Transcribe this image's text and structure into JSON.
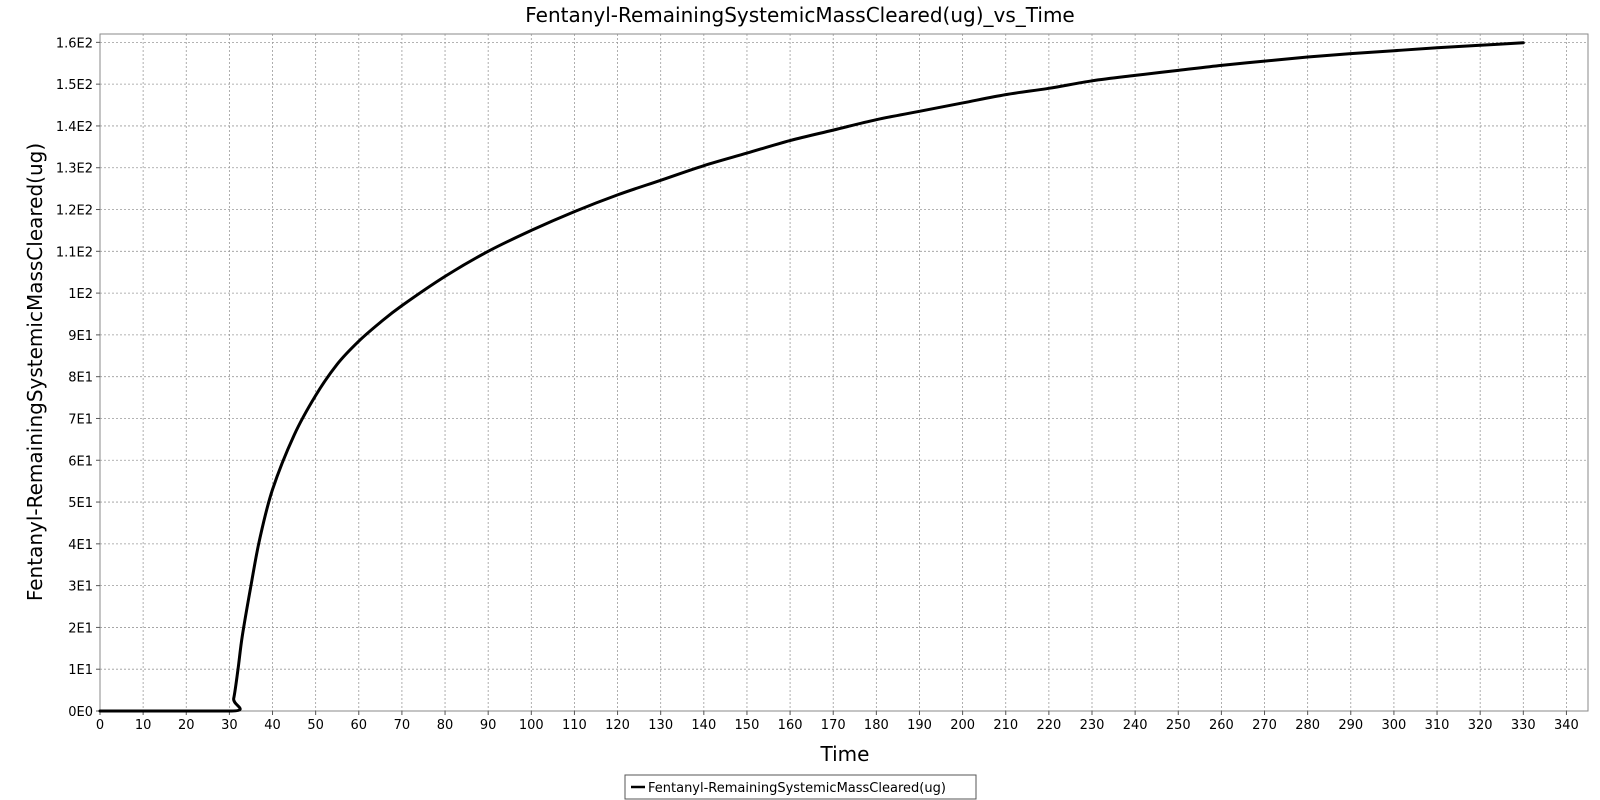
{
  "chart_data": {
    "type": "line",
    "title": "Fentanyl-RemainingSystemicMassCleared(ug)_vs_Time",
    "xlabel": "Time",
    "ylabel": "Fentanyl-RemainingSystemicMassCleared(ug)",
    "xlim": [
      0,
      345
    ],
    "ylim": [
      0,
      162
    ],
    "x_ticks": [
      "0",
      "10",
      "20",
      "30",
      "40",
      "50",
      "60",
      "70",
      "80",
      "90",
      "100",
      "110",
      "120",
      "130",
      "140",
      "150",
      "160",
      "170",
      "180",
      "190",
      "200",
      "210",
      "220",
      "230",
      "240",
      "250",
      "260",
      "270",
      "280",
      "290",
      "300",
      "310",
      "320",
      "330",
      "340"
    ],
    "y_ticks": [
      "0E0",
      "1E1",
      "2E1",
      "3E1",
      "4E1",
      "5E1",
      "6E1",
      "7E1",
      "8E1",
      "9E1",
      "1E2",
      "1.1E2",
      "1.2E2",
      "1.3E2",
      "1.4E2",
      "1.5E2",
      "1.6E2"
    ],
    "grid": true,
    "legend_position": "bottom-center",
    "series": [
      {
        "name": "Fentanyl-RemainingSystemicMassCleared(ug)",
        "color": "#000000",
        "x": [
          0,
          30,
          31,
          32,
          33,
          35,
          37,
          40,
          45,
          50,
          55,
          60,
          65,
          70,
          80,
          90,
          100,
          110,
          120,
          130,
          140,
          150,
          160,
          170,
          180,
          190,
          200,
          210,
          220,
          230,
          240,
          250,
          260,
          270,
          280,
          290,
          300,
          310,
          320,
          330
        ],
        "y": [
          0,
          0,
          3,
          10,
          18,
          30,
          41,
          53,
          66,
          75.5,
          83,
          88.5,
          93,
          97,
          104,
          110,
          115,
          119.5,
          123.5,
          127,
          130.5,
          133.5,
          136.5,
          139,
          141.5,
          143.5,
          145.5,
          147.5,
          149,
          150.8,
          152.1,
          153.3,
          154.5,
          155.5,
          156.5,
          157.3,
          158,
          158.7,
          159.3,
          159.9
        ]
      }
    ]
  }
}
